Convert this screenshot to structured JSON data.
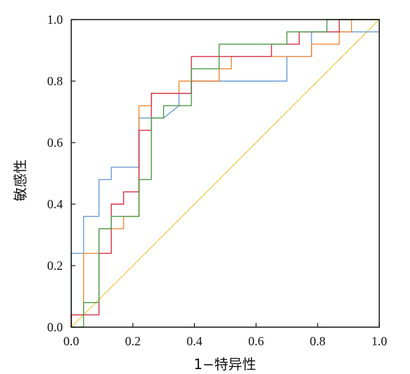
{
  "chart_data": {
    "type": "line",
    "xlabel": "1−特异性",
    "ylabel": "敏感性",
    "xlim": [
      0,
      1
    ],
    "ylim": [
      0,
      1
    ],
    "x_ticks": [
      "0.0",
      "0.2",
      "0.4",
      "0.6",
      "0.8",
      "1.0"
    ],
    "y_ticks": [
      "0.0",
      "0.2",
      "0.4",
      "0.6",
      "0.8",
      "1.0"
    ],
    "grid": false,
    "legend": "none",
    "series": [
      {
        "color": "#6a9bd1",
        "points": [
          [
            0,
            0
          ],
          [
            0,
            0.24
          ],
          [
            0.04,
            0.24
          ],
          [
            0.04,
            0.36
          ],
          [
            0.09,
            0.36
          ],
          [
            0.09,
            0.48
          ],
          [
            0.13,
            0.48
          ],
          [
            0.13,
            0.52
          ],
          [
            0.22,
            0.52
          ],
          [
            0.22,
            0.68
          ],
          [
            0.3,
            0.68
          ],
          [
            0.35,
            0.72
          ],
          [
            0.35,
            0.76
          ],
          [
            0.39,
            0.76
          ],
          [
            0.39,
            0.8
          ],
          [
            0.7,
            0.8
          ],
          [
            0.7,
            0.88
          ],
          [
            0.78,
            0.88
          ],
          [
            0.78,
            0.96
          ],
          [
            1,
            0.96
          ]
        ]
      },
      {
        "color": "#f08a3c",
        "points": [
          [
            0,
            0
          ],
          [
            0,
            0.04
          ],
          [
            0.04,
            0.04
          ],
          [
            0.04,
            0.24
          ],
          [
            0.09,
            0.24
          ],
          [
            0.09,
            0.32
          ],
          [
            0.17,
            0.32
          ],
          [
            0.17,
            0.36
          ],
          [
            0.22,
            0.36
          ],
          [
            0.22,
            0.72
          ],
          [
            0.26,
            0.72
          ],
          [
            0.26,
            0.76
          ],
          [
            0.35,
            0.76
          ],
          [
            0.35,
            0.8
          ],
          [
            0.48,
            0.8
          ],
          [
            0.48,
            0.84
          ],
          [
            0.52,
            0.84
          ],
          [
            0.52,
            0.88
          ],
          [
            0.78,
            0.88
          ],
          [
            0.78,
            0.92
          ],
          [
            0.87,
            0.92
          ],
          [
            0.87,
            0.96
          ],
          [
            0.91,
            0.96
          ],
          [
            0.91,
            1
          ],
          [
            1,
            1
          ]
        ]
      },
      {
        "color": "#d63048",
        "points": [
          [
            0,
            0
          ],
          [
            0,
            0.04
          ],
          [
            0.09,
            0.04
          ],
          [
            0.09,
            0.24
          ],
          [
            0.13,
            0.24
          ],
          [
            0.13,
            0.4
          ],
          [
            0.17,
            0.4
          ],
          [
            0.17,
            0.44
          ],
          [
            0.22,
            0.44
          ],
          [
            0.22,
            0.64
          ],
          [
            0.26,
            0.64
          ],
          [
            0.26,
            0.76
          ],
          [
            0.39,
            0.76
          ],
          [
            0.39,
            0.88
          ],
          [
            0.65,
            0.88
          ],
          [
            0.65,
            0.92
          ],
          [
            0.74,
            0.92
          ],
          [
            0.74,
            0.96
          ],
          [
            0.87,
            0.96
          ],
          [
            0.87,
            1
          ],
          [
            1,
            1
          ]
        ]
      },
      {
        "color": "#4a9a48",
        "points": [
          [
            0,
            0
          ],
          [
            0.04,
            0
          ],
          [
            0.04,
            0.08
          ],
          [
            0.09,
            0.08
          ],
          [
            0.09,
            0.32
          ],
          [
            0.13,
            0.32
          ],
          [
            0.13,
            0.36
          ],
          [
            0.22,
            0.36
          ],
          [
            0.22,
            0.48
          ],
          [
            0.26,
            0.48
          ],
          [
            0.26,
            0.68
          ],
          [
            0.3,
            0.68
          ],
          [
            0.3,
            0.72
          ],
          [
            0.39,
            0.72
          ],
          [
            0.39,
            0.84
          ],
          [
            0.48,
            0.84
          ],
          [
            0.48,
            0.92
          ],
          [
            0.7,
            0.92
          ],
          [
            0.7,
            0.96
          ],
          [
            0.83,
            0.96
          ],
          [
            0.83,
            1
          ],
          [
            1,
            1
          ]
        ]
      }
    ],
    "reference_line": {
      "color": "#f1cf5a",
      "points": [
        [
          0,
          0
        ],
        [
          1,
          1
        ]
      ]
    }
  }
}
